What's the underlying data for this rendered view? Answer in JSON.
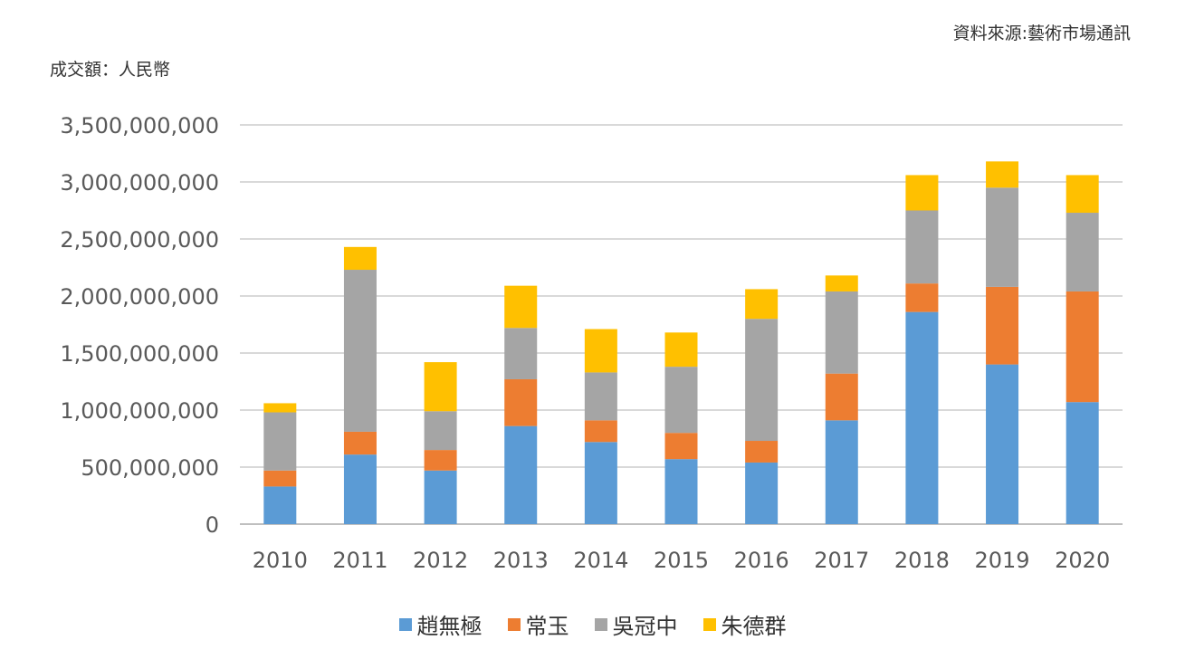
{
  "source_note": "資料來源:藝術市場通訊",
  "unit_label": "成交額：人民幣",
  "chart_data": {
    "type": "bar",
    "stacked": true,
    "title": "",
    "xlabel": "",
    "ylabel": "成交額：人民幣",
    "ylim": [
      0,
      3500000000
    ],
    "yticks": [
      0,
      500000000,
      1000000000,
      1500000000,
      2000000000,
      2500000000,
      3000000000,
      3500000000
    ],
    "ytick_labels": [
      "0",
      "500,000,000",
      "1,000,000,000",
      "1,500,000,000",
      "2,000,000,000",
      "2,500,000,000",
      "3,000,000,000",
      "3,500,000,000"
    ],
    "grid": true,
    "legend_position": "bottom",
    "categories": [
      "2010",
      "2011",
      "2012",
      "2013",
      "2014",
      "2015",
      "2016",
      "2017",
      "2018",
      "2019",
      "2020"
    ],
    "series": [
      {
        "name": "趙無極",
        "color": "#5b9bd5",
        "values": [
          330000000,
          610000000,
          470000000,
          860000000,
          720000000,
          570000000,
          540000000,
          910000000,
          1860000000,
          1400000000,
          1070000000
        ]
      },
      {
        "name": "常玉",
        "color": "#ed7d31",
        "values": [
          140000000,
          200000000,
          180000000,
          410000000,
          190000000,
          230000000,
          190000000,
          410000000,
          250000000,
          680000000,
          970000000
        ]
      },
      {
        "name": "吳冠中",
        "color": "#a5a5a5",
        "values": [
          510000000,
          1420000000,
          340000000,
          450000000,
          420000000,
          580000000,
          1070000000,
          720000000,
          640000000,
          870000000,
          690000000
        ]
      },
      {
        "name": "朱德群",
        "color": "#ffc000",
        "values": [
          80000000,
          200000000,
          430000000,
          370000000,
          380000000,
          300000000,
          260000000,
          140000000,
          310000000,
          230000000,
          330000000
        ]
      }
    ]
  }
}
